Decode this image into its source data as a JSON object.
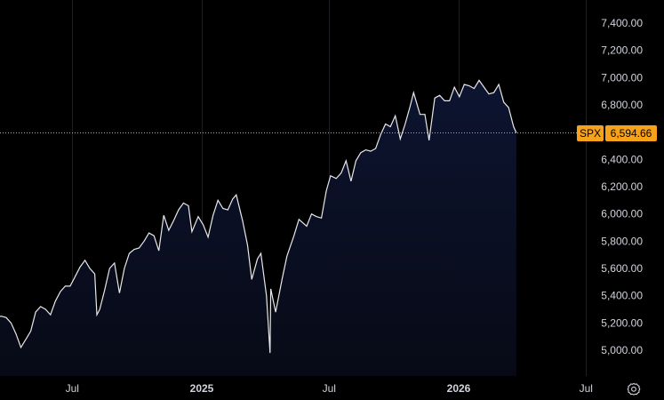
{
  "chart_data": {
    "type": "area",
    "symbol": "SPX",
    "last_value": 6594.66,
    "last_value_label": "6,594.66",
    "ylim": [
      4850,
      7500
    ],
    "y_ticks": [
      {
        "value": 5000,
        "label": "5,000.00"
      },
      {
        "value": 5200,
        "label": "5,200.00"
      },
      {
        "value": 5400,
        "label": "5,400.00"
      },
      {
        "value": 5600,
        "label": "5,600.00"
      },
      {
        "value": 5800,
        "label": "5,800.00"
      },
      {
        "value": 6000,
        "label": "6,000.00"
      },
      {
        "value": 6200,
        "label": "6,200.00"
      },
      {
        "value": 6400,
        "label": "6,400.00"
      },
      {
        "value": 6600,
        "label": "6,600.00"
      },
      {
        "value": 6800,
        "label": "6,800.00"
      },
      {
        "value": 7000,
        "label": "7,000.00"
      },
      {
        "value": 7200,
        "label": "7,200.00"
      },
      {
        "value": 7400,
        "label": "7,400.00"
      }
    ],
    "x_ticks": [
      {
        "date": "2024-07-01",
        "label": "Jul",
        "bold": false
      },
      {
        "date": "2025-01-01",
        "label": "2025",
        "bold": true
      },
      {
        "date": "2025-07-01",
        "label": "Jul",
        "bold": false
      },
      {
        "date": "2026-01-01",
        "label": "2026",
        "bold": true
      },
      {
        "date": "2026-07-01",
        "label": "Jul",
        "bold": false
      }
    ],
    "xlim": [
      "2024-03-15",
      "2026-07-15"
    ],
    "points": [
      [
        "2024-03-15",
        5240
      ],
      [
        "2024-03-22",
        5250
      ],
      [
        "2024-03-29",
        5240
      ],
      [
        "2024-04-05",
        5200
      ],
      [
        "2024-04-12",
        5120
      ],
      [
        "2024-04-19",
        5020
      ],
      [
        "2024-04-26",
        5080
      ],
      [
        "2024-05-03",
        5140
      ],
      [
        "2024-05-10",
        5280
      ],
      [
        "2024-05-17",
        5320
      ],
      [
        "2024-05-24",
        5300
      ],
      [
        "2024-05-31",
        5260
      ],
      [
        "2024-06-07",
        5360
      ],
      [
        "2024-06-14",
        5430
      ],
      [
        "2024-06-21",
        5470
      ],
      [
        "2024-06-28",
        5470
      ],
      [
        "2024-07-05",
        5540
      ],
      [
        "2024-07-12",
        5610
      ],
      [
        "2024-07-19",
        5660
      ],
      [
        "2024-07-26",
        5600
      ],
      [
        "2024-08-02",
        5560
      ],
      [
        "2024-08-05",
        5260
      ],
      [
        "2024-08-09",
        5300
      ],
      [
        "2024-08-16",
        5440
      ],
      [
        "2024-08-23",
        5600
      ],
      [
        "2024-08-30",
        5640
      ],
      [
        "2024-09-06",
        5420
      ],
      [
        "2024-09-13",
        5600
      ],
      [
        "2024-09-20",
        5710
      ],
      [
        "2024-09-27",
        5740
      ],
      [
        "2024-10-04",
        5750
      ],
      [
        "2024-10-11",
        5800
      ],
      [
        "2024-10-18",
        5860
      ],
      [
        "2024-10-25",
        5840
      ],
      [
        "2024-11-01",
        5730
      ],
      [
        "2024-11-08",
        5990
      ],
      [
        "2024-11-15",
        5880
      ],
      [
        "2024-11-22",
        5950
      ],
      [
        "2024-11-29",
        6030
      ],
      [
        "2024-12-06",
        6080
      ],
      [
        "2024-12-13",
        6060
      ],
      [
        "2024-12-18",
        5870
      ],
      [
        "2024-12-27",
        5980
      ],
      [
        "2025-01-03",
        5920
      ],
      [
        "2025-01-10",
        5830
      ],
      [
        "2025-01-17",
        5990
      ],
      [
        "2025-01-24",
        6100
      ],
      [
        "2025-01-31",
        6040
      ],
      [
        "2025-02-07",
        6030
      ],
      [
        "2025-02-14",
        6110
      ],
      [
        "2025-02-19",
        6140
      ],
      [
        "2025-02-28",
        5950
      ],
      [
        "2025-03-07",
        5770
      ],
      [
        "2025-03-13",
        5520
      ],
      [
        "2025-03-21",
        5670
      ],
      [
        "2025-03-26",
        5710
      ],
      [
        "2025-04-03",
        5400
      ],
      [
        "2025-04-08",
        4980
      ],
      [
        "2025-04-09",
        5450
      ],
      [
        "2025-04-16",
        5280
      ],
      [
        "2025-04-25",
        5520
      ],
      [
        "2025-05-02",
        5690
      ],
      [
        "2025-05-12",
        5840
      ],
      [
        "2025-05-19",
        5960
      ],
      [
        "2025-05-30",
        5910
      ],
      [
        "2025-06-06",
        6000
      ],
      [
        "2025-06-13",
        5980
      ],
      [
        "2025-06-20",
        5970
      ],
      [
        "2025-06-27",
        6170
      ],
      [
        "2025-07-03",
        6280
      ],
      [
        "2025-07-11",
        6260
      ],
      [
        "2025-07-18",
        6300
      ],
      [
        "2025-07-25",
        6390
      ],
      [
        "2025-08-01",
        6240
      ],
      [
        "2025-08-08",
        6390
      ],
      [
        "2025-08-15",
        6450
      ],
      [
        "2025-08-22",
        6470
      ],
      [
        "2025-08-29",
        6460
      ],
      [
        "2025-09-05",
        6480
      ],
      [
        "2025-09-12",
        6580
      ],
      [
        "2025-09-19",
        6660
      ],
      [
        "2025-09-26",
        6640
      ],
      [
        "2025-10-03",
        6720
      ],
      [
        "2025-10-10",
        6550
      ],
      [
        "2025-10-17",
        6660
      ],
      [
        "2025-10-24",
        6790
      ],
      [
        "2025-10-29",
        6890
      ],
      [
        "2025-11-07",
        6730
      ],
      [
        "2025-11-14",
        6730
      ],
      [
        "2025-11-20",
        6540
      ],
      [
        "2025-11-28",
        6850
      ],
      [
        "2025-12-05",
        6870
      ],
      [
        "2025-12-12",
        6830
      ],
      [
        "2025-12-19",
        6830
      ],
      [
        "2025-12-26",
        6930
      ],
      [
        "2026-01-02",
        6860
      ],
      [
        "2026-01-09",
        6950
      ],
      [
        "2026-01-16",
        6940
      ],
      [
        "2026-01-23",
        6920
      ],
      [
        "2026-01-30",
        6980
      ],
      [
        "2026-02-06",
        6930
      ],
      [
        "2026-02-13",
        6880
      ],
      [
        "2026-02-20",
        6890
      ],
      [
        "2026-02-27",
        6950
      ],
      [
        "2026-03-06",
        6820
      ],
      [
        "2026-03-13",
        6780
      ],
      [
        "2026-03-20",
        6640
      ],
      [
        "2026-03-24",
        6594.66
      ]
    ]
  },
  "colors": {
    "line": "#e8e8ea",
    "area_top": "#0d1430",
    "area_bottom": "#070a16",
    "price_line": "#f7a21b",
    "tag_bg": "#f7a21b"
  },
  "icons": {
    "settings": "gear-icon"
  }
}
